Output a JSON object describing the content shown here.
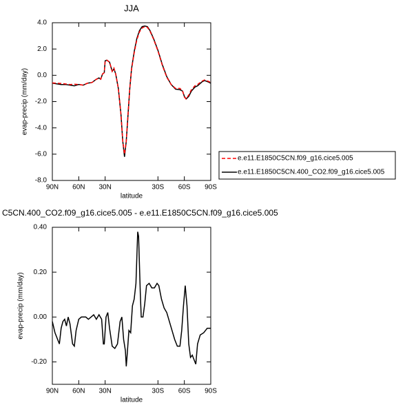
{
  "chart_data": [
    {
      "type": "line",
      "title": "JJA",
      "x_label": "latitude",
      "y_label": "evap-precip (mm/day)",
      "xlim": [
        90,
        -90
      ],
      "ylim": [
        -8,
        4
      ],
      "xticks": [
        {
          "value": 90,
          "label": "90N"
        },
        {
          "value": 60,
          "label": "60N"
        },
        {
          "value": 30,
          "label": "30N"
        },
        {
          "value": -30,
          "label": "30S"
        },
        {
          "value": -60,
          "label": "60S"
        },
        {
          "value": -90,
          "label": "90S"
        }
      ],
      "yticks": [
        {
          "value": 4,
          "label": "4.0"
        },
        {
          "value": 2,
          "label": "2.0"
        },
        {
          "value": 0,
          "label": "0.0"
        },
        {
          "value": -2,
          "label": "-2.0"
        },
        {
          "value": -4,
          "label": "-4.0"
        },
        {
          "value": -6,
          "label": "-6.0"
        },
        {
          "value": -8,
          "label": "-8.0"
        }
      ],
      "x": [
        90,
        85,
        80,
        75,
        70,
        65,
        60,
        55,
        50,
        45,
        40,
        37,
        35,
        33,
        31,
        30,
        28,
        25,
        22,
        20,
        18,
        15,
        12,
        10,
        8,
        6,
        4,
        2,
        0,
        -3,
        -6,
        -9,
        -12,
        -15,
        -18,
        -21,
        -25,
        -30,
        -35,
        -40,
        -45,
        -50,
        -55,
        -58,
        -60,
        -62,
        -65,
        -68,
        -72,
        -75,
        -80,
        -83,
        -87,
        -90
      ],
      "series": [
        {
          "name": "e.e11.E1850C5CN.f09_g16.cice5.005",
          "color": "#ff0000",
          "dashed": true,
          "values": [
            -0.58,
            -0.6,
            -0.62,
            -0.66,
            -0.7,
            -0.68,
            -0.7,
            -0.75,
            -0.6,
            -0.55,
            -0.3,
            -0.22,
            -0.3,
            0.1,
            0.2,
            1.1,
            1.15,
            1.0,
            0.3,
            0.55,
            0.1,
            -1.0,
            -3.0,
            -5.0,
            -6.0,
            -5.0,
            -3.0,
            -1.0,
            0.45,
            1.7,
            2.7,
            3.3,
            3.6,
            3.7,
            3.65,
            3.35,
            2.75,
            1.85,
            0.75,
            -0.15,
            -0.7,
            -1.0,
            -1.0,
            -1.2,
            -1.65,
            -1.8,
            -1.5,
            -1.1,
            -0.8,
            -0.7,
            -0.45,
            -0.35,
            -0.45,
            -0.55
          ]
        },
        {
          "name": "e.e11.E1850C5CN.400_CO2.f09_g16.cice5.005",
          "color": "#000000",
          "dashed": false,
          "values": [
            -0.6,
            -0.65,
            -0.7,
            -0.7,
            -0.75,
            -0.8,
            -0.7,
            -0.75,
            -0.6,
            -0.55,
            -0.3,
            -0.2,
            -0.3,
            0.1,
            0.2,
            1.1,
            1.15,
            1.0,
            0.3,
            0.5,
            0.1,
            -1.0,
            -3.0,
            -5.0,
            -6.2,
            -5.0,
            -3.0,
            -1.0,
            0.5,
            1.8,
            2.8,
            3.4,
            3.7,
            3.75,
            3.7,
            3.4,
            2.8,
            1.9,
            0.8,
            -0.1,
            -0.7,
            -1.05,
            -1.1,
            -1.2,
            -1.6,
            -1.8,
            -1.6,
            -1.2,
            -0.9,
            -0.8,
            -0.5,
            -0.4,
            -0.5,
            -0.6
          ]
        }
      ]
    },
    {
      "type": "line",
      "title": "C5CN.400_CO2.f09_g16.cice5.005 - e.e11.E1850C5CN.f09_g16.cice5.005",
      "x_label": "latitude",
      "y_label": "evap-precip (mm/day)",
      "xlim": [
        90,
        -90
      ],
      "ylim": [
        -0.3,
        0.4
      ],
      "xticks": [
        {
          "value": 90,
          "label": "90N"
        },
        {
          "value": 60,
          "label": "60N"
        },
        {
          "value": 30,
          "label": "30N"
        },
        {
          "value": -30,
          "label": "30S"
        },
        {
          "value": -60,
          "label": "60S"
        },
        {
          "value": -90,
          "label": "90S"
        }
      ],
      "yticks": [
        {
          "value": 0.4,
          "label": "0.40"
        },
        {
          "value": 0.2,
          "label": "0.20"
        },
        {
          "value": 0,
          "label": "0.00"
        },
        {
          "value": -0.2,
          "label": "-0.20"
        }
      ],
      "x": [
        90,
        87,
        84,
        82,
        80,
        78,
        76,
        74,
        72,
        70,
        67,
        65,
        63,
        60,
        57,
        55,
        52,
        49,
        46,
        43,
        40,
        37,
        34,
        32,
        31,
        29,
        27,
        25,
        22,
        19,
        16,
        13,
        11,
        9,
        7,
        6,
        5,
        3,
        1,
        -1,
        -3,
        -5,
        -7,
        -8,
        -10,
        -11,
        -13,
        -15,
        -17,
        -20,
        -23,
        -26,
        -29,
        -31,
        -34,
        -37,
        -40,
        -43,
        -46,
        -49,
        -52,
        -55,
        -57,
        -59,
        -61,
        -63,
        -65,
        -67,
        -69,
        -71,
        -73,
        -75,
        -78,
        -82,
        -86,
        -90
      ],
      "series": [
        {
          "name": null,
          "color": "#000000",
          "dashed": false,
          "values": [
            -0.02,
            -0.07,
            -0.1,
            -0.12,
            -0.05,
            -0.02,
            -0.01,
            -0.04,
            0.0,
            -0.03,
            -0.12,
            -0.13,
            -0.06,
            -0.01,
            0.0,
            0.0,
            0.0,
            -0.01,
            0.0,
            0.01,
            -0.01,
            0.01,
            -0.01,
            -0.12,
            -0.12,
            0.0,
            0.02,
            -0.05,
            -0.13,
            -0.14,
            -0.12,
            -0.02,
            0.0,
            -0.1,
            -0.15,
            -0.22,
            -0.17,
            -0.06,
            -0.07,
            0.05,
            0.08,
            0.15,
            0.38,
            0.36,
            0.1,
            0.0,
            0.0,
            0.06,
            0.14,
            0.15,
            0.13,
            0.13,
            0.15,
            0.14,
            0.08,
            0.04,
            0.02,
            -0.02,
            -0.06,
            -0.1,
            -0.13,
            -0.13,
            -0.06,
            0.05,
            0.14,
            0.05,
            -0.12,
            -0.18,
            -0.17,
            -0.19,
            -0.21,
            -0.12,
            -0.08,
            -0.07,
            -0.05,
            -0.05
          ]
        }
      ]
    }
  ]
}
